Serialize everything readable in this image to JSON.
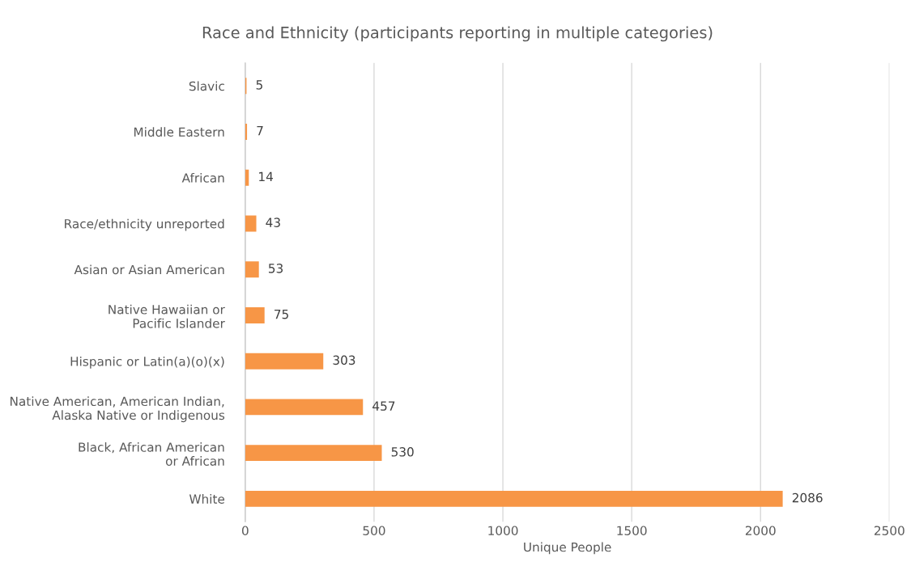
{
  "chart_data": {
    "type": "bar",
    "orientation": "horizontal",
    "title": "Race and Ethnicity (participants reporting in multiple categories)",
    "xlabel": "Unique People",
    "categories": [
      "Slavic",
      "Middle Eastern",
      "African",
      "Race/ethnicity unreported",
      "Asian or Asian American",
      "Native Hawaiian or\nPacific Islander",
      "Hispanic or Latin(a)(o)(x)",
      "Native American, American Indian,\nAlaska Native or Indigenous",
      "Black, African American\nor African",
      "White"
    ],
    "values": [
      5,
      7,
      14,
      43,
      53,
      75,
      303,
      457,
      530,
      2086
    ],
    "color": "#f79646",
    "xlim": [
      0,
      2500
    ],
    "xticks": [
      0,
      500,
      1000,
      1500,
      2000,
      2500
    ],
    "grid": "x",
    "data_labels": true
  }
}
